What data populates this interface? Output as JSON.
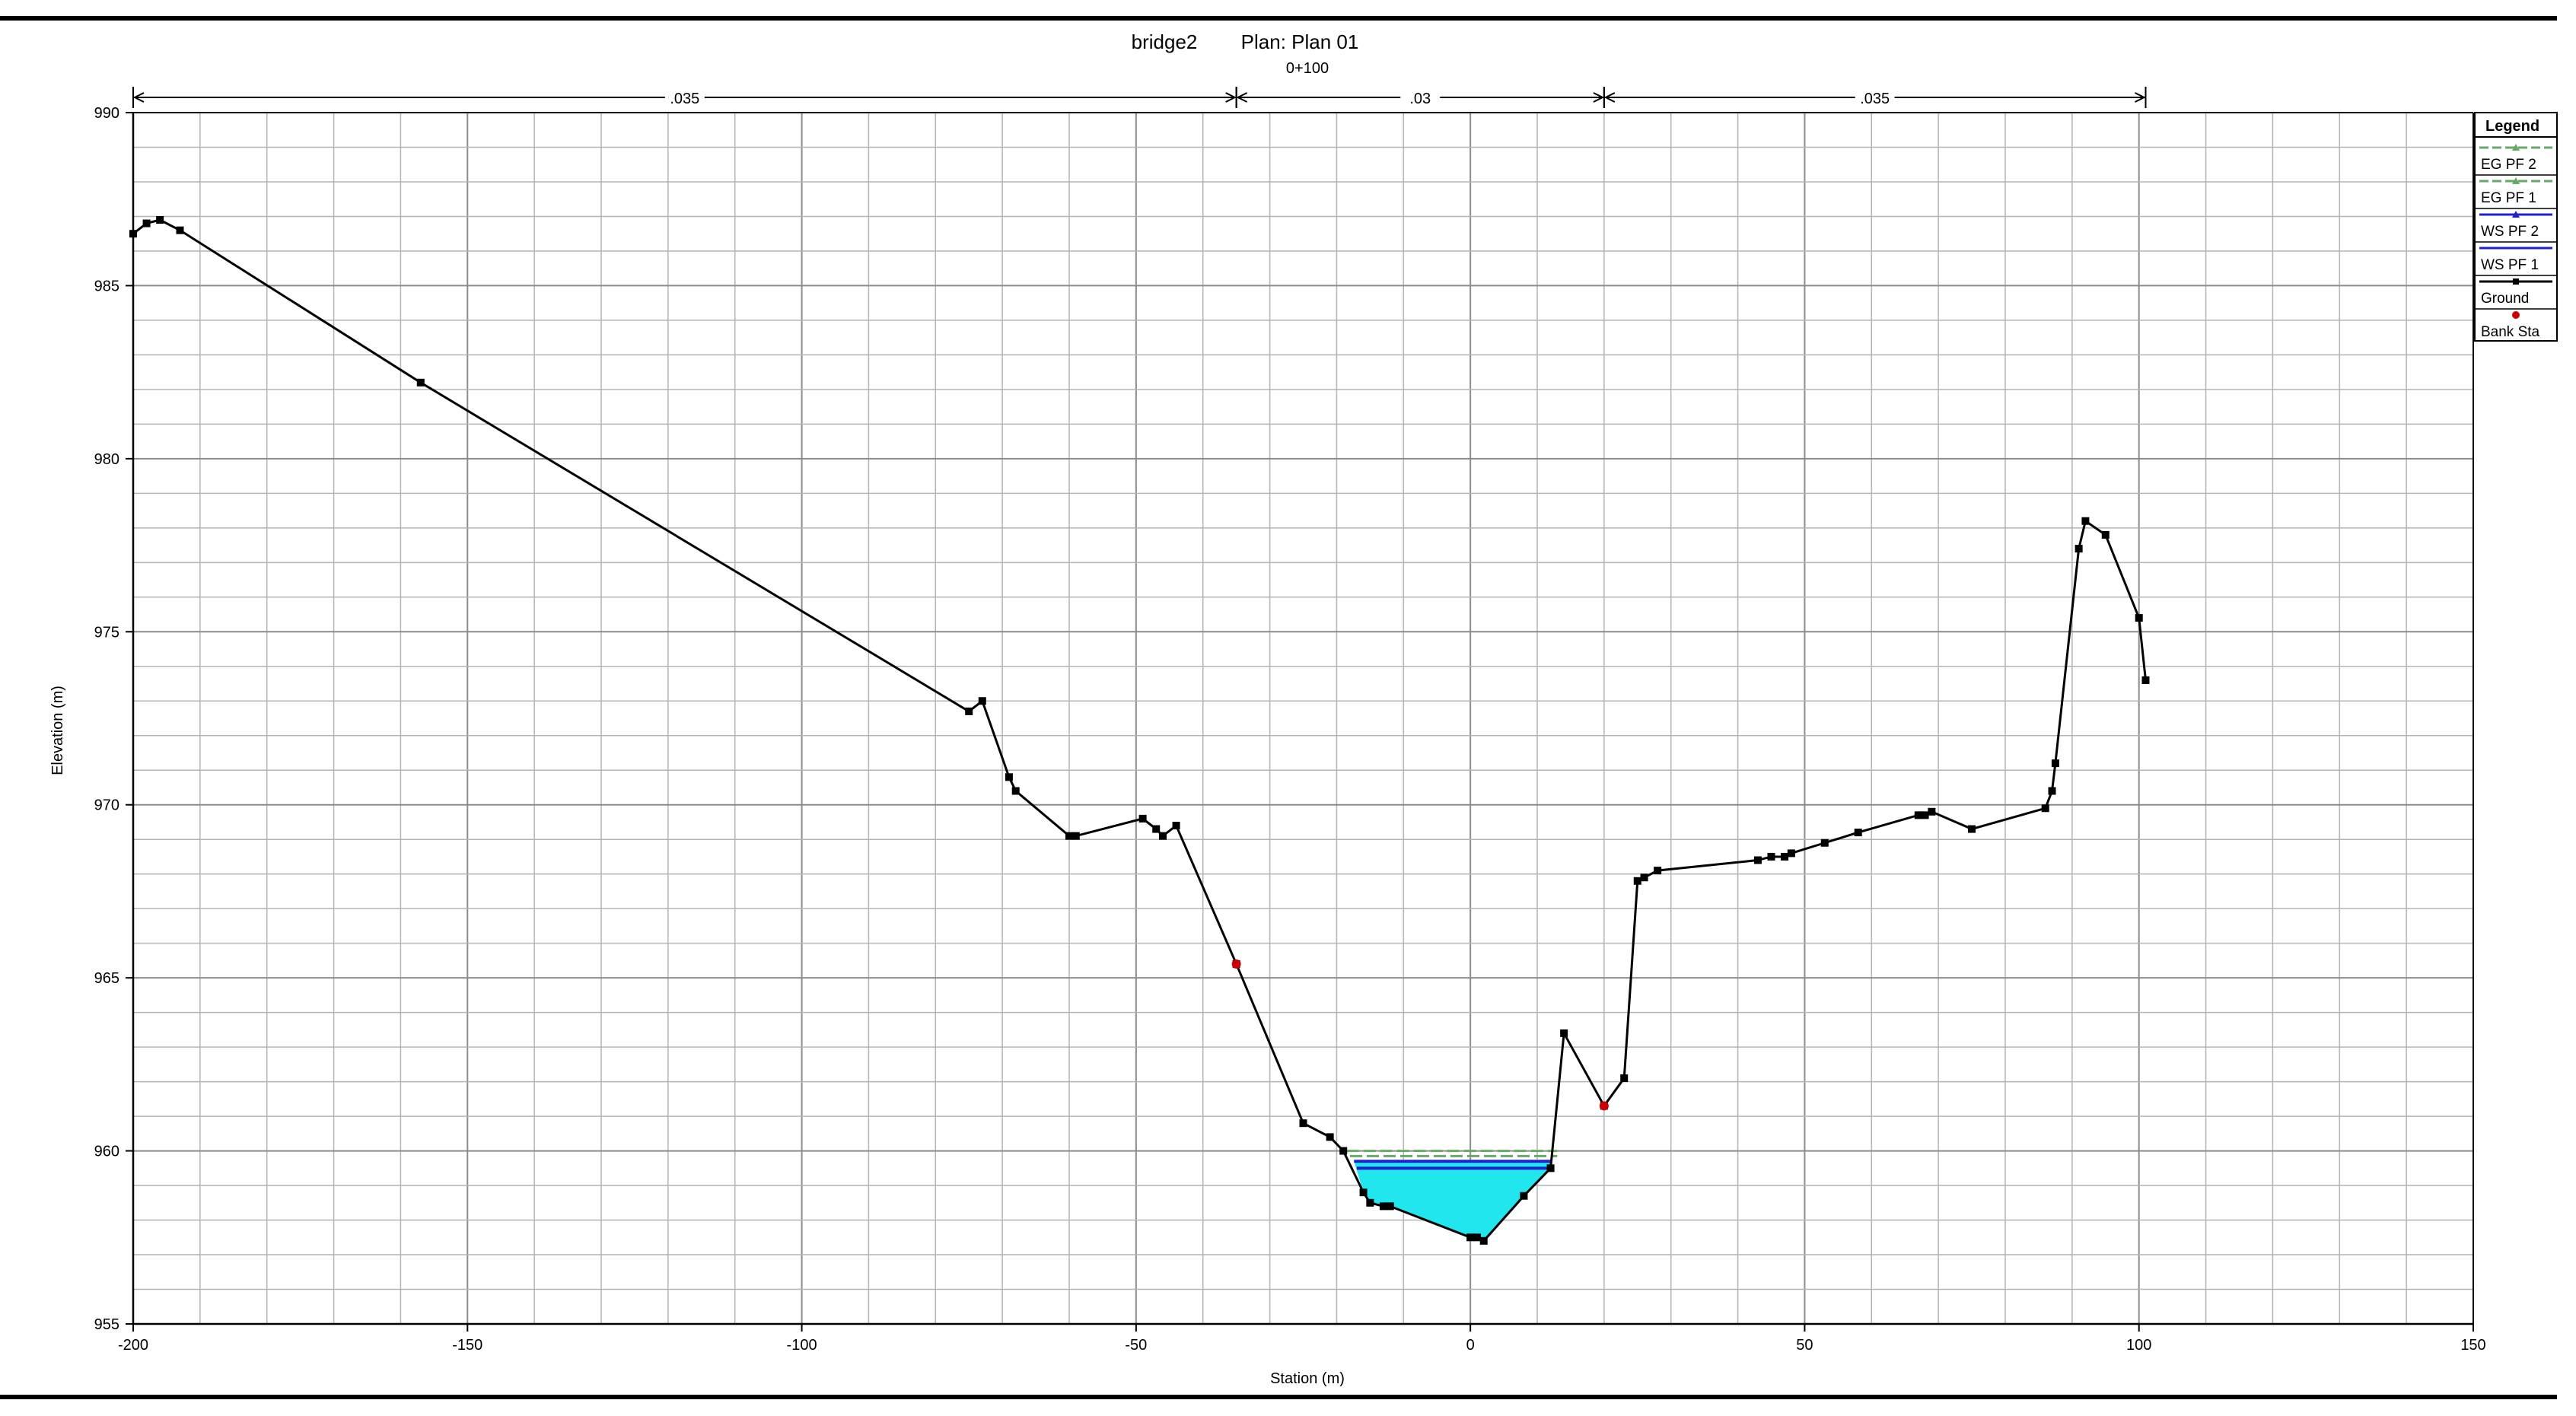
{
  "header": {
    "title_left": "bridge2",
    "title_right": "Plan: Plan 01",
    "subtitle": "0+100"
  },
  "chart_data": {
    "type": "line",
    "xlabel": "Station (m)",
    "ylabel": "Elevation (m)",
    "xlim": [
      -200,
      150
    ],
    "ylim": [
      955,
      990
    ],
    "x_ticks": [
      -200,
      -150,
      -100,
      -50,
      0,
      50,
      100,
      150
    ],
    "y_ticks": [
      955,
      960,
      965,
      970,
      975,
      980,
      985,
      990
    ],
    "x_tick_labels": [
      "-200",
      "-150",
      "-100",
      "-50",
      "0",
      "50",
      "100",
      "150"
    ],
    "y_tick_labels": [
      "955",
      "960",
      "965",
      "970",
      "975",
      "980",
      "985",
      "990"
    ],
    "grid": true,
    "mannings": [
      {
        "label": ".035",
        "from": -200,
        "to": -35
      },
      {
        "label": ".03",
        "from": -35,
        "to": 20
      },
      {
        "label": ".035",
        "from": 20,
        "to": 101
      }
    ],
    "ground": {
      "name": "Ground",
      "color": "#000000",
      "x": [
        -200,
        -198,
        -196,
        -193,
        -157,
        -75,
        -73,
        -69,
        -68,
        -60,
        -59,
        -49,
        -47,
        -46,
        -44,
        -35,
        -25,
        -21,
        -19,
        -16,
        -15,
        -13,
        -12,
        0,
        1,
        2,
        8,
        12,
        14,
        20,
        23,
        25,
        26,
        28,
        43,
        45,
        47,
        48,
        53,
        58,
        67,
        68,
        69,
        75,
        86,
        87,
        87.5,
        91,
        92,
        95,
        100,
        101
      ],
      "y": [
        986.5,
        986.8,
        986.9,
        986.6,
        982.2,
        972.7,
        973.0,
        970.8,
        970.4,
        969.1,
        969.1,
        969.6,
        969.3,
        969.1,
        969.4,
        965.4,
        960.8,
        960.4,
        960.0,
        958.8,
        958.5,
        958.4,
        958.4,
        957.5,
        957.5,
        957.4,
        958.7,
        959.5,
        963.4,
        961.3,
        962.1,
        967.8,
        967.9,
        968.1,
        968.4,
        968.5,
        968.5,
        968.6,
        968.9,
        969.2,
        969.7,
        969.7,
        969.8,
        969.3,
        969.9,
        970.4,
        971.2,
        977.4,
        978.2,
        977.8,
        975.4,
        973.6
      ]
    },
    "bank_stations": {
      "name": "Bank Sta",
      "color": "#cc0000",
      "x": [
        -35,
        20
      ],
      "y": [
        965.4,
        961.3
      ]
    },
    "water_surfaces": [
      {
        "name": "WS PF 2",
        "color": "#2020cc",
        "elevation": 959.7,
        "from": -17.4,
        "to": 12
      },
      {
        "name": "WS PF 1",
        "color": "#2020cc",
        "elevation": 959.5,
        "from": -17.0,
        "to": 12
      }
    ],
    "energy_grades": [
      {
        "name": "EG PF 2",
        "color": "#66aa66",
        "elevation": 960.0,
        "from": -18.5,
        "to": 13
      },
      {
        "name": "EG PF 1",
        "color": "#66aa66",
        "elevation": 959.85,
        "from": -18.0,
        "to": 13
      }
    ],
    "water_fill_color": "#22e6ee",
    "legend": {
      "title": "Legend",
      "placement": "right",
      "items": [
        "EG PF 2",
        "EG PF 1",
        "WS PF 2",
        "WS PF 1",
        "Ground",
        "Bank Sta"
      ]
    }
  }
}
